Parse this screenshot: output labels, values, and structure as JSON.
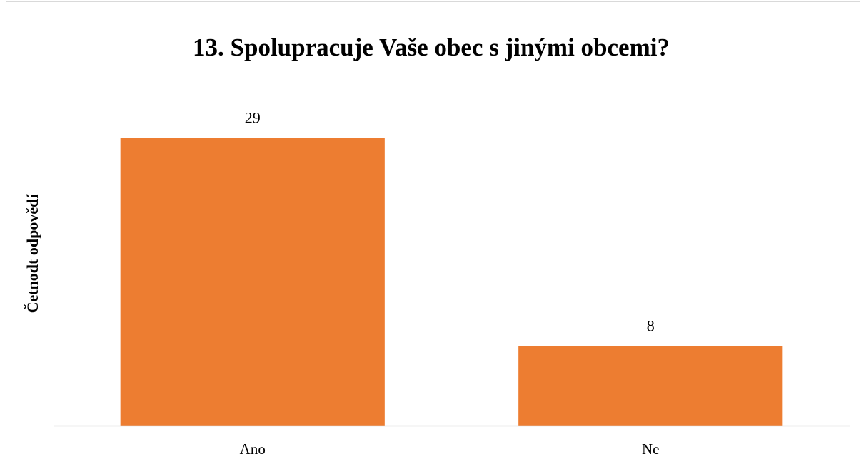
{
  "chart_data": {
    "type": "bar",
    "title": "13. Spolupracuje Vaše obec s jinými obcemi?",
    "y_label": "Četnodt odpovědí",
    "categories": [
      "Ano",
      "Ne"
    ],
    "values": [
      29,
      8
    ],
    "color": "#ed7d31",
    "ylim": [
      0,
      35
    ]
  }
}
